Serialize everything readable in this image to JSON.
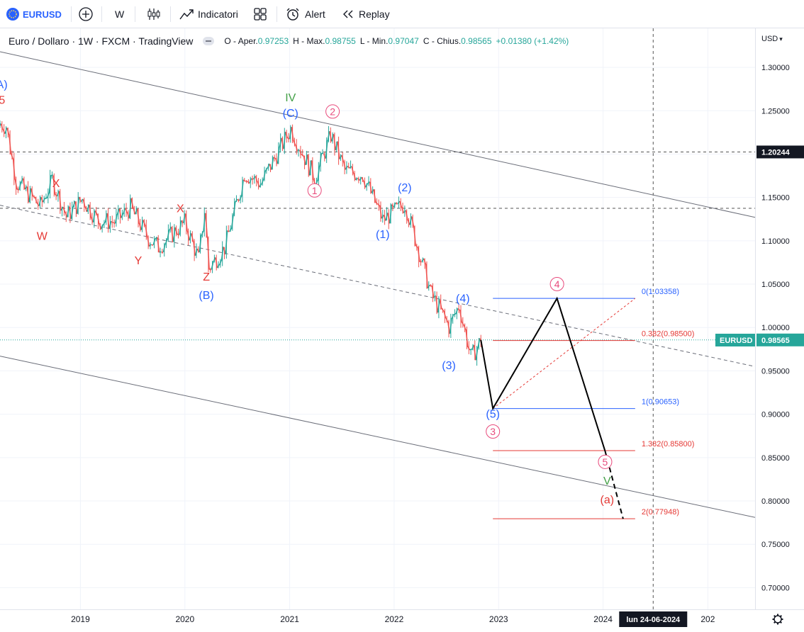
{
  "toolbar": {
    "symbol": "EURUSD",
    "interval": "W",
    "indicators_label": "Indicatori",
    "alert_label": "Alert",
    "replay_label": "Replay"
  },
  "legend": {
    "title": "Euro / Dollaro · 1W · FXCM · TradingView",
    "o_label": "O - Aper.",
    "o_value": "0.97253",
    "h_label": "H - Max.",
    "h_value": "0.98755",
    "l_label": "L - Min.",
    "l_value": "0.97047",
    "c_label": "C - Chius.",
    "c_value": "0.98565",
    "change": "+0.01380 (+1.42%)"
  },
  "axis": {
    "currency": "USD",
    "price_badge_symbol": "EURUSD",
    "price_badge_value": "0.98565",
    "crosshair_price": "1.20244",
    "crosshair_date": "lun 24-06-2024"
  },
  "colors": {
    "up": "#26a69a",
    "down": "#ef5350",
    "blue_label": "#2962ff",
    "pink_label": "#e84a7c",
    "red_label": "#e53935",
    "green_label": "#43a047",
    "fib_blue": "#2962ff",
    "fib_red": "#e53935"
  },
  "chart_data": {
    "type": "candlestick",
    "ylim": [
      0.675,
      1.345
    ],
    "xlim": [
      "2018-03-26",
      "2025-06-15"
    ],
    "y_ticks": [
      "1.30000",
      "1.25000",
      "1.20000",
      "1.15000",
      "1.10000",
      "1.05000",
      "1.00000",
      "0.95000",
      "0.90000",
      "0.85000",
      "0.80000",
      "0.75000",
      "0.70000"
    ],
    "x_ticks": [
      {
        "label": "2019",
        "t": "2019-01-01"
      },
      {
        "label": "2020",
        "t": "2020-01-01"
      },
      {
        "label": "2021",
        "t": "2021-01-01"
      },
      {
        "label": "2022",
        "t": "2022-01-01"
      },
      {
        "label": "2023",
        "t": "2023-01-01"
      },
      {
        "label": "2024",
        "t": "2024-01-01"
      },
      {
        "label": "202",
        "t": "2025-01-01"
      }
    ],
    "price_path": [
      [
        "2018-03-26",
        1.235
      ],
      [
        "2018-04-16",
        1.232
      ],
      [
        "2018-05-21",
        1.168
      ],
      [
        "2018-08-13",
        1.14
      ],
      [
        "2018-09-24",
        1.17
      ],
      [
        "2018-11-12",
        1.128
      ],
      [
        "2019-01-07",
        1.148
      ],
      [
        "2019-03-04",
        1.123
      ],
      [
        "2019-04-29",
        1.122
      ],
      [
        "2019-06-24",
        1.138
      ],
      [
        "2019-08-26",
        1.103
      ],
      [
        "2019-09-30",
        1.093
      ],
      [
        "2019-12-30",
        1.121
      ],
      [
        "2020-02-17",
        1.079
      ],
      [
        "2020-03-09",
        1.135
      ],
      [
        "2020-03-23",
        1.068
      ],
      [
        "2020-05-18",
        1.092
      ],
      [
        "2020-07-27",
        1.178
      ],
      [
        "2020-09-21",
        1.166
      ],
      [
        "2021-01-04",
        1.229
      ],
      [
        "2021-03-29",
        1.172
      ],
      [
        "2021-05-24",
        1.222
      ],
      [
        "2021-07-12",
        1.181
      ],
      [
        "2021-09-13",
        1.176
      ],
      [
        "2021-11-22",
        1.124
      ],
      [
        "2022-02-07",
        1.143
      ],
      [
        "2022-04-25",
        1.055
      ],
      [
        "2022-05-09",
        1.039
      ],
      [
        "2022-07-11",
        1.001
      ],
      [
        "2022-08-15",
        1.025
      ],
      [
        "2022-09-26",
        0.965
      ],
      [
        "2022-10-31",
        0.9857
      ]
    ],
    "annotations": [
      {
        "text": "(A)",
        "t": "2018-03-26",
        "y": 1.276,
        "color": "blue"
      },
      {
        "text": "5",
        "t": "2018-04-02",
        "y": 1.258,
        "color": "red"
      },
      {
        "text": "W",
        "t": "2018-08-20",
        "y": 1.101,
        "color": "red"
      },
      {
        "text": "X",
        "t": "2018-10-08",
        "y": 1.162,
        "color": "red"
      },
      {
        "text": "Y",
        "t": "2019-07-22",
        "y": 1.073,
        "color": "red"
      },
      {
        "text": "X",
        "t": "2019-12-16",
        "y": 1.133,
        "color": "red"
      },
      {
        "text": "Z",
        "t": "2020-03-16",
        "y": 1.054,
        "color": "red"
      },
      {
        "text": "(B)",
        "t": "2020-03-16",
        "y": 1.033,
        "color": "blue"
      },
      {
        "text": "IV",
        "t": "2021-01-04",
        "y": 1.261,
        "color": "green"
      },
      {
        "text": "(C)",
        "t": "2021-01-04",
        "y": 1.243,
        "color": "blue"
      },
      {
        "text": "1",
        "t": "2021-03-29",
        "y": 1.154,
        "color": "pink",
        "circle": true
      },
      {
        "text": "2",
        "t": "2021-05-31",
        "y": 1.245,
        "color": "pink",
        "circle": true
      },
      {
        "text": "(1)",
        "t": "2021-11-22",
        "y": 1.103,
        "color": "blue"
      },
      {
        "text": "(2)",
        "t": "2022-02-07",
        "y": 1.157,
        "color": "blue"
      },
      {
        "text": "(4)",
        "t": "2022-08-29",
        "y": 1.029,
        "color": "blue"
      },
      {
        "text": "(3)",
        "t": "2022-07-11",
        "y": 0.952,
        "color": "blue"
      },
      {
        "text": "(5)",
        "t": "2022-12-12",
        "y": 0.896,
        "color": "blue"
      },
      {
        "text": "3",
        "t": "2022-12-12",
        "y": 0.876,
        "color": "pink",
        "circle": true
      },
      {
        "text": "4",
        "t": "2023-07-24",
        "y": 1.046,
        "color": "pink",
        "circle": true
      },
      {
        "text": "5",
        "t": "2024-01-08",
        "y": 0.841,
        "color": "pink",
        "circle": true
      },
      {
        "text": "V",
        "t": "2024-01-15",
        "y": 0.819,
        "color": "green"
      },
      {
        "text": "(a)",
        "t": "2024-01-15",
        "y": 0.797,
        "color": "red"
      }
    ],
    "channel_lines": [
      {
        "p1": [
          "2018-03-26",
          1.318
        ],
        "p2": [
          "2025-06-15",
          1.127
        ],
        "style": "solid"
      },
      {
        "p1": [
          "2018-03-26",
          1.141
        ],
        "p2": [
          "2025-06-15",
          0.955
        ],
        "style": "dashed"
      },
      {
        "p1": [
          "2018-03-26",
          0.967
        ],
        "p2": [
          "2025-06-15",
          0.781
        ],
        "style": "solid"
      }
    ],
    "projection_path": [
      [
        "2022-10-31",
        0.9857
      ],
      [
        "2022-12-12",
        0.90653
      ],
      [
        "2023-07-24",
        1.03358
      ],
      [
        "2024-01-08",
        0.8575
      ]
    ],
    "projection_dashed": [
      [
        "2024-01-08",
        0.8575
      ],
      [
        "2024-03-11",
        0.7794
      ]
    ],
    "fib_levels": [
      {
        "label": "0(1.03358)",
        "y": 1.03358,
        "color": "blue"
      },
      {
        "label": "0.382(0.98500)",
        "y": 0.985,
        "color": "red"
      },
      {
        "label": "1(0.90653)",
        "y": 0.90653,
        "color": "blue"
      },
      {
        "label": "1.382(0.85800)",
        "y": 0.858,
        "color": "red"
      },
      {
        "label": "2(0.77948)",
        "y": 0.77948,
        "color": "red"
      }
    ],
    "fib_range": {
      "start": "2022-12-12",
      "end": "2024-04-22"
    },
    "fib_diagonal": [
      [
        "2022-12-12",
        0.90653
      ],
      [
        "2024-04-22",
        1.03358
      ]
    ],
    "hlines_dashed": [
      1.20244,
      1.1375
    ],
    "crosshair_vline": "2024-06-24",
    "last_price": 0.98565
  }
}
